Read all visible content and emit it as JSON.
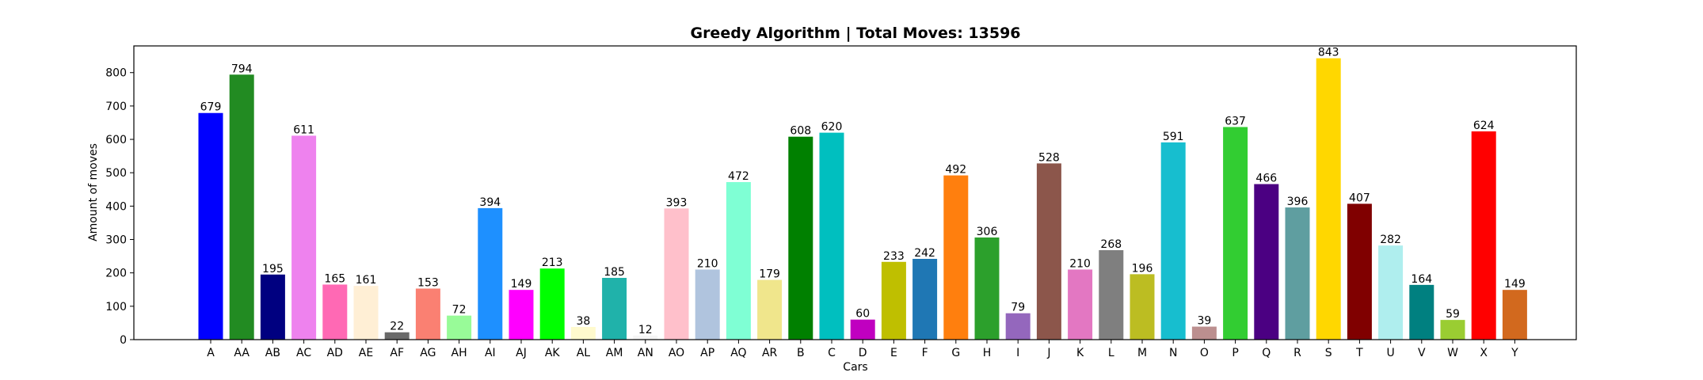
{
  "chart_data": {
    "type": "bar",
    "title": "Greedy Algorithm | Total Moves: 13596",
    "xlabel": "Cars",
    "ylabel": "Amount of moves",
    "ylim": [
      0,
      880
    ],
    "yticks": [
      0,
      100,
      200,
      300,
      400,
      500,
      600,
      700,
      800
    ],
    "grid": false,
    "legend": "none",
    "categories": [
      "A",
      "AA",
      "AB",
      "AC",
      "AD",
      "AE",
      "AF",
      "AG",
      "AH",
      "AI",
      "AJ",
      "AK",
      "AL",
      "AM",
      "AN",
      "AO",
      "AP",
      "AQ",
      "AR",
      "B",
      "C",
      "D",
      "E",
      "F",
      "G",
      "H",
      "I",
      "J",
      "K",
      "L",
      "M",
      "N",
      "O",
      "P",
      "Q",
      "R",
      "S",
      "T",
      "U",
      "V",
      "W",
      "X",
      "Y"
    ],
    "values": [
      679,
      794,
      195,
      611,
      165,
      161,
      22,
      153,
      72,
      394,
      149,
      213,
      38,
      185,
      12,
      393,
      210,
      472,
      179,
      608,
      620,
      60,
      233,
      242,
      492,
      306,
      79,
      528,
      210,
      268,
      196,
      591,
      39,
      637,
      466,
      396,
      843,
      407,
      282,
      164,
      59,
      624,
      149
    ],
    "colors": [
      "#0000ff",
      "#228b22",
      "#000080",
      "#ee82ee",
      "#ff69b4",
      "#ffefd5",
      "#696969",
      "#fa8072",
      "#98fb98",
      "#1e90ff",
      "#ff00ff",
      "#00ff00",
      "#fffacd",
      "#20b2aa",
      "#f5f5f5",
      "#ffc0cb",
      "#b0c4de",
      "#7fffd4",
      "#f0e68c",
      "#008000",
      "#00bfbf",
      "#c000c0",
      "#bfbf00",
      "#1f77b4",
      "#ff7f0e",
      "#2ca02c",
      "#9467bd",
      "#8c564b",
      "#e377c2",
      "#7f7f7f",
      "#bcbd22",
      "#17becf",
      "#bc8f8f",
      "#32cd32",
      "#4b0082",
      "#5f9ea0",
      "#ffd700",
      "#800000",
      "#afeeee",
      "#008080",
      "#9acd32",
      "#ff0000",
      "#d2691e"
    ]
  }
}
